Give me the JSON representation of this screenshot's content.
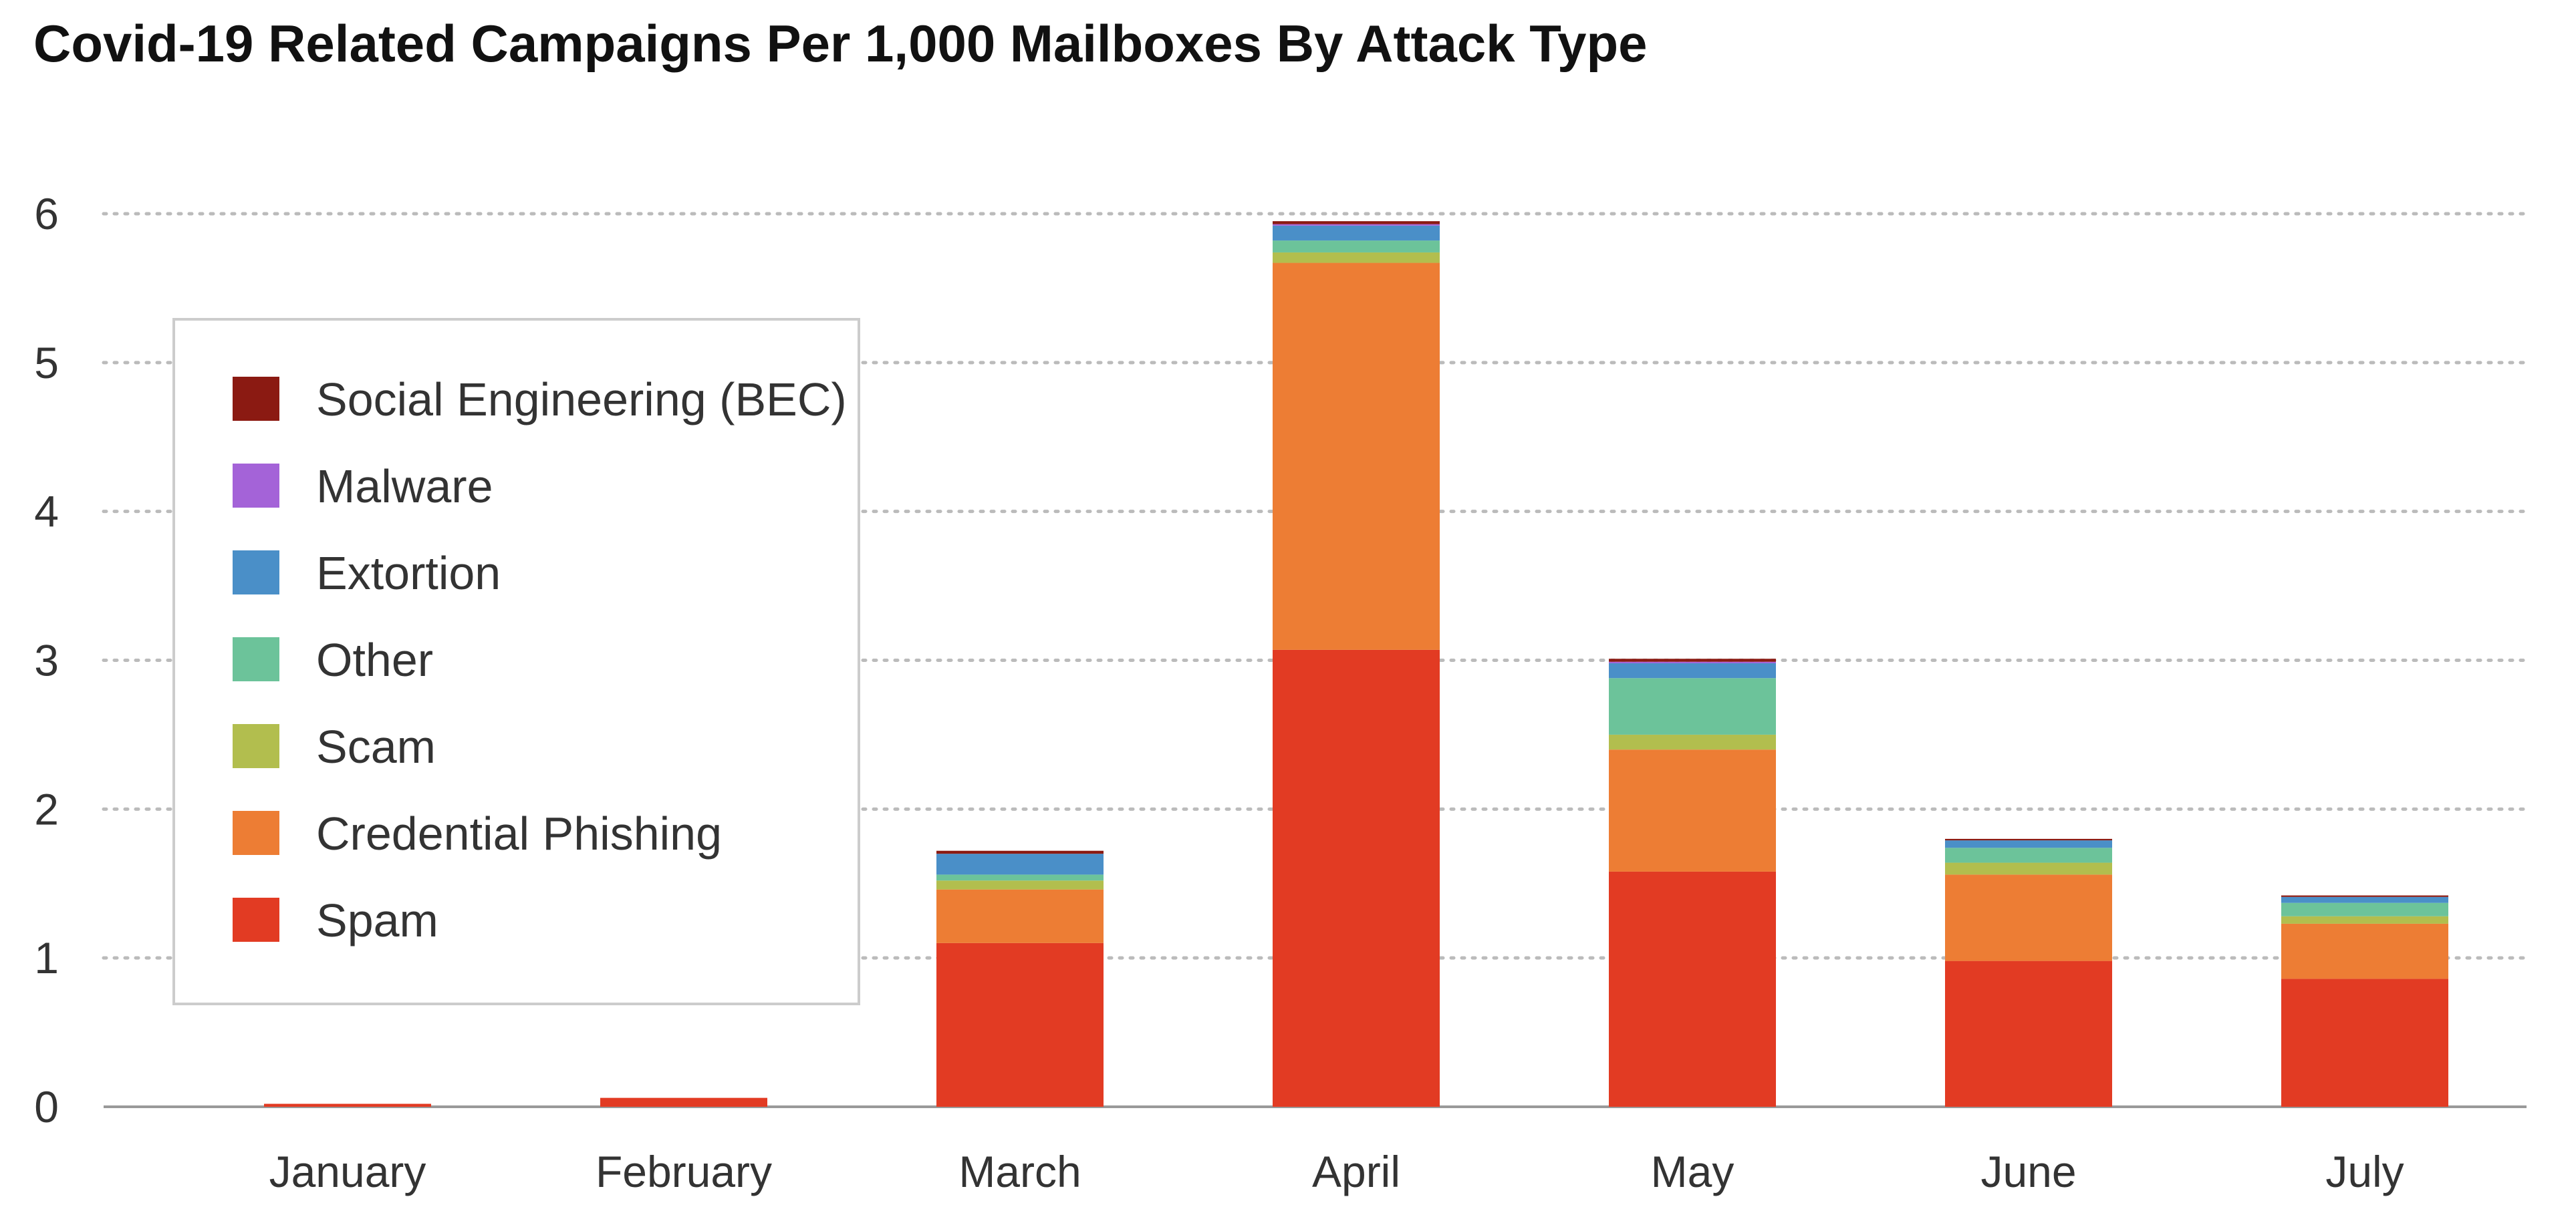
{
  "chart_data": {
    "type": "bar",
    "stacked": true,
    "title": "Covid-19 Related Campaigns Per 1,000 Mailboxes By Attack Type",
    "xlabel": "",
    "ylabel": "",
    "ylim": [
      0,
      6
    ],
    "yticks": [
      "0",
      "1",
      "2",
      "3",
      "4",
      "5",
      "6"
    ],
    "grid": "horizontal dotted",
    "legend_position": "left",
    "categories": [
      "January",
      "February",
      "March",
      "April",
      "May",
      "June",
      "July"
    ],
    "series": [
      {
        "name": "Spam",
        "color": "#e23b23",
        "values": [
          0.02,
          0.06,
          1.1,
          3.07,
          1.58,
          0.98,
          0.86
        ]
      },
      {
        "name": "Credential Phishing",
        "color": "#ed7d34",
        "values": [
          0.0,
          0.0,
          0.36,
          2.6,
          0.82,
          0.58,
          0.37
        ]
      },
      {
        "name": "Scam",
        "color": "#b2be4e",
        "values": [
          0.0,
          0.0,
          0.06,
          0.07,
          0.1,
          0.08,
          0.05
        ]
      },
      {
        "name": "Other",
        "color": "#6cc39a",
        "values": [
          0.0,
          0.0,
          0.04,
          0.08,
          0.38,
          0.1,
          0.09
        ]
      },
      {
        "name": "Extortion",
        "color": "#4a8fc8",
        "values": [
          0.0,
          0.0,
          0.14,
          0.1,
          0.1,
          0.05,
          0.04
        ]
      },
      {
        "name": "Malware",
        "color": "#a463d8",
        "values": [
          0.0,
          0.0,
          0.0,
          0.01,
          0.01,
          0.0,
          0.0
        ]
      },
      {
        "name": "Social Engineering (BEC)",
        "color": "#8b1a12",
        "values": [
          0.0,
          0.0,
          0.02,
          0.02,
          0.02,
          0.01,
          0.01
        ]
      }
    ],
    "legend_order": [
      "Social Engineering (BEC)",
      "Malware",
      "Extortion",
      "Other",
      "Scam",
      "Credential Phishing",
      "Spam"
    ]
  }
}
